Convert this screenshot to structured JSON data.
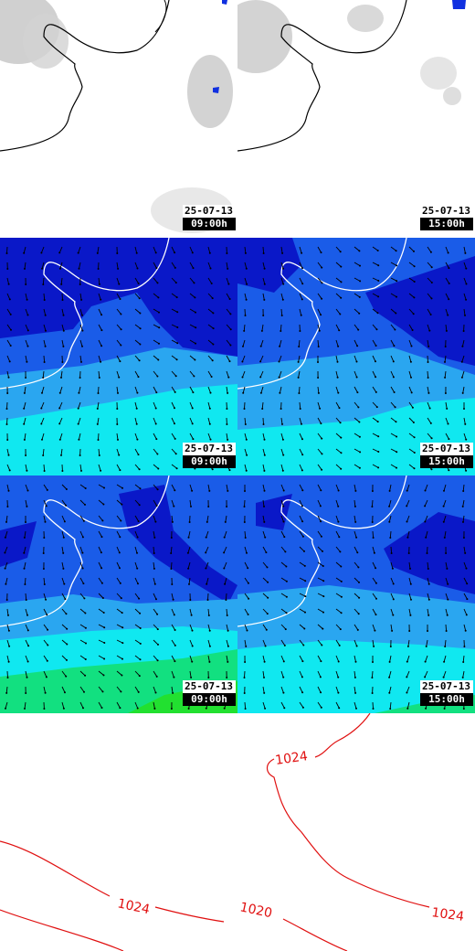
{
  "panels": [
    {
      "date": "25-07-13",
      "time": "09:00h"
    },
    {
      "date": "25-07-13",
      "time": "15:00h"
    },
    {
      "date": "25-07-13",
      "time": "09:00h"
    },
    {
      "date": "25-07-13",
      "time": "15:00h"
    },
    {
      "date": "25-07-13",
      "time": "09:00h"
    },
    {
      "date": "25-07-13",
      "time": "15:00h"
    }
  ],
  "isobars": [
    "1024",
    "1020",
    "1024",
    "1024"
  ],
  "colors": {
    "coast": "#000000",
    "coast_on_color": "#ffffff",
    "isobar": "#e01010",
    "cloud": "#b9b9b9",
    "rain": "#1030e0",
    "wind_dark": "#0a18c8",
    "wind_mid": "#1a5ce8",
    "wind_light": "#2aa6f0",
    "wind_cyan": "#10e8f0",
    "wind_green": "#12e080"
  }
}
